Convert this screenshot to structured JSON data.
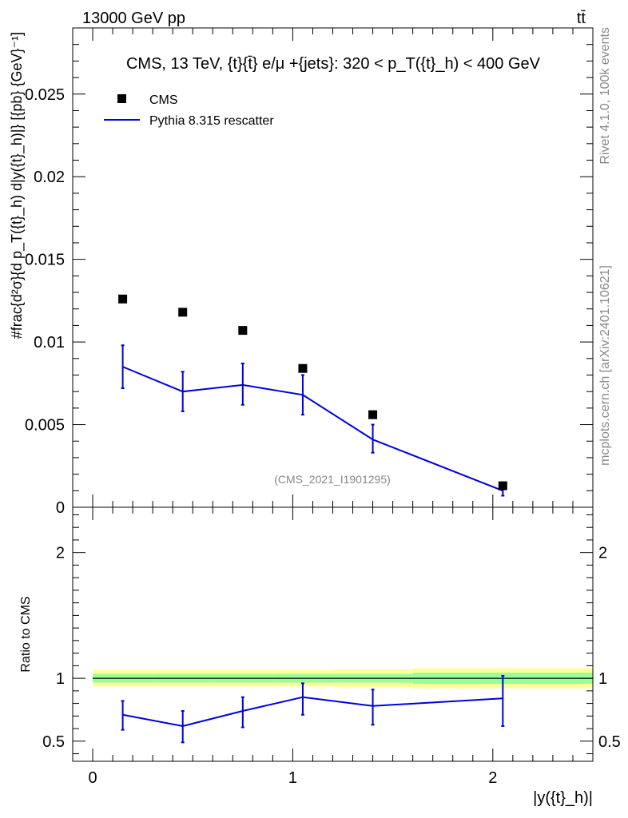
{
  "header": {
    "left": "13000 GeV pp",
    "right": "tt̄"
  },
  "side": {
    "rivet": "Rivet 4.1.0,  100k events",
    "mcplots": "mcplots.cern.ch [arXiv:2401.10621]"
  },
  "colors": {
    "mc": "#0000dd",
    "band_outer": "#ffff99",
    "band_inner": "#99ff99",
    "data": "#000000",
    "watermark": "#888888"
  },
  "chart_data": [
    {
      "type": "scatter",
      "panel": "main",
      "title": "CMS, 13 TeV, {t}{t̄} e/μ +{jets}: 320 <  p_T({t}_h) < 400 GeV",
      "watermark": "(CMS_2021_I1901295)",
      "ylabel": "#frac{d²σ}{d p_T({t}_h) d|y({t}_h)|} [{pb} {GeV}⁻¹]",
      "xlim": [
        -0.1,
        2.5
      ],
      "ylim": [
        0,
        0.029
      ],
      "yticks": [
        0,
        0.005,
        0.01,
        0.015,
        0.02,
        0.025
      ],
      "ytick_labels": [
        "0",
        "0.005",
        "0.01",
        "0.015",
        "0.02",
        "0.025"
      ],
      "legend": [
        "CMS",
        "Pythia 8.315 rescatter"
      ],
      "legend_placement": "top-left",
      "series": [
        {
          "name": "CMS",
          "marker": "square",
          "x": [
            0.15,
            0.45,
            0.75,
            1.05,
            1.4,
            2.05
          ],
          "y": [
            0.0126,
            0.0118,
            0.0107,
            0.0084,
            0.0056,
            0.0013
          ]
        },
        {
          "name": "Pythia 8.315 rescatter",
          "style": "line",
          "x": [
            0.15,
            0.45,
            0.75,
            1.05,
            1.4,
            2.05
          ],
          "y": [
            0.0085,
            0.007,
            0.0074,
            0.0068,
            0.0041,
            0.001
          ],
          "err_low": [
            0.0072,
            0.0058,
            0.0062,
            0.0056,
            0.0033,
            0.0007
          ],
          "err_high": [
            0.0098,
            0.0082,
            0.0087,
            0.008,
            0.005,
            0.0013
          ]
        }
      ]
    },
    {
      "type": "line",
      "panel": "ratio",
      "ylabel": "Ratio to CMS",
      "xlabel": "|y({t}_h)|",
      "xlim": [
        -0.1,
        2.5
      ],
      "ylim": [
        0.34,
        2.36
      ],
      "xticks": [
        0,
        1,
        2
      ],
      "xtick_labels": [
        "0",
        "1",
        "2"
      ],
      "yticks": [
        0.5,
        1,
        2
      ],
      "ytick_labels": [
        "0.5",
        "1",
        "2"
      ],
      "bins": [
        0,
        0.3,
        0.6,
        0.9,
        1.2,
        1.6,
        2.5
      ],
      "band_inner_halfwidth": [
        0.035,
        0.035,
        0.035,
        0.035,
        0.035,
        0.045
      ],
      "band_outer_halfwidth": [
        0.065,
        0.065,
        0.065,
        0.065,
        0.07,
        0.08
      ],
      "series": [
        {
          "name": "Pythia 8.315 rescatter",
          "x": [
            0.15,
            0.45,
            0.75,
            1.05,
            1.4,
            2.05
          ],
          "y": [
            0.71,
            0.62,
            0.74,
            0.85,
            0.78,
            0.84
          ],
          "err_low": [
            0.59,
            0.49,
            0.61,
            0.71,
            0.63,
            0.62
          ],
          "err_high": [
            0.82,
            0.74,
            0.85,
            0.96,
            0.91,
            1.02
          ]
        }
      ]
    }
  ]
}
